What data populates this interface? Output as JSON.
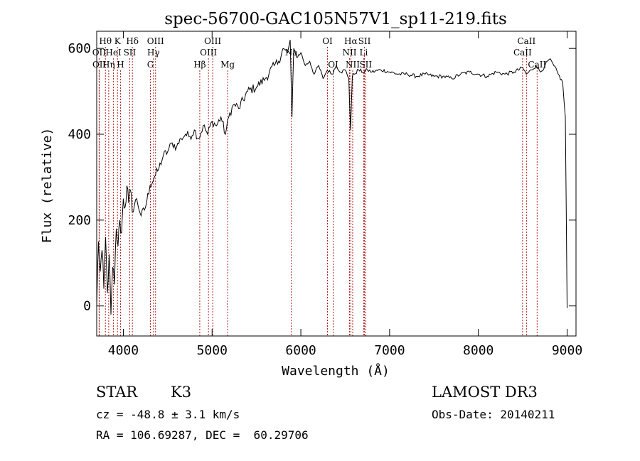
{
  "chart_data": {
    "type": "line",
    "title": "spec-56700-GAC105N57V1_sp11-219.fits",
    "xlabel": "Wavelength (Å)",
    "ylabel": "Flux (relative)",
    "xlim": [
      3700,
      9100
    ],
    "ylim": [
      -70,
      640
    ],
    "xticks": [
      4000,
      5000,
      6000,
      7000,
      8000,
      9000
    ],
    "yticks": [
      0,
      200,
      400,
      600
    ],
    "grid": false,
    "line_color": "#000000",
    "marker_color": "#b22222",
    "series": [
      {
        "name": "flux",
        "x": [
          3700,
          3720,
          3740,
          3760,
          3780,
          3800,
          3820,
          3840,
          3860,
          3880,
          3900,
          3920,
          3940,
          3960,
          3980,
          4000,
          4020,
          4040,
          4060,
          4080,
          4100,
          4150,
          4200,
          4250,
          4300,
          4350,
          4400,
          4450,
          4500,
          4550,
          4600,
          4650,
          4700,
          4750,
          4800,
          4850,
          4900,
          4950,
          5000,
          5050,
          5100,
          5150,
          5200,
          5250,
          5300,
          5400,
          5500,
          5600,
          5700,
          5750,
          5800,
          5850,
          5880,
          5900,
          5920,
          5950,
          6000,
          6050,
          6100,
          6150,
          6200,
          6250,
          6300,
          6350,
          6400,
          6450,
          6500,
          6540,
          6560,
          6580,
          6600,
          6650,
          6700,
          6750,
          6800,
          6900,
          7000,
          7100,
          7200,
          7300,
          7400,
          7500,
          7600,
          7700,
          7800,
          7900,
          8000,
          8100,
          8200,
          8300,
          8400,
          8500,
          8540,
          8600,
          8650,
          8700,
          8750,
          8800,
          8850,
          8900,
          8950,
          8980,
          9000
        ],
        "y": [
          0,
          150,
          80,
          130,
          40,
          160,
          30,
          120,
          -20,
          90,
          50,
          180,
          140,
          200,
          170,
          250,
          230,
          280,
          240,
          270,
          220,
          250,
          210,
          230,
          280,
          300,
          320,
          350,
          360,
          380,
          370,
          390,
          400,
          395,
          410,
          390,
          420,
          400,
          430,
          420,
          440,
          400,
          450,
          470,
          460,
          500,
          510,
          530,
          560,
          570,
          600,
          590,
          620,
          440,
          600,
          580,
          590,
          560,
          570,
          540,
          560,
          530,
          550,
          540,
          560,
          545,
          550,
          530,
          410,
          535,
          540,
          550,
          545,
          550,
          545,
          550,
          545,
          540,
          540,
          535,
          540,
          535,
          535,
          530,
          540,
          545,
          540,
          535,
          545,
          540,
          545,
          555,
          540,
          550,
          560,
          545,
          560,
          575,
          560,
          540,
          520,
          440,
          -5
        ]
      }
    ],
    "line_markers": [
      {
        "label": "Hθ",
        "x": 3798,
        "row": 1
      },
      {
        "label": "OII",
        "x": 3727,
        "row": 2
      },
      {
        "label": "OII",
        "x": 3729,
        "row": 3
      },
      {
        "label": "K",
        "x": 3934,
        "row": 1
      },
      {
        "label": "HeI",
        "x": 3889,
        "row": 2
      },
      {
        "label": "Hη",
        "x": 3835,
        "row": 3
      },
      {
        "label": "Hδ",
        "x": 4102,
        "row": 1
      },
      {
        "label": "SII",
        "x": 4072,
        "row": 2
      },
      {
        "label": "H",
        "x": 3968,
        "row": 3
      },
      {
        "label": "OIII",
        "x": 4363,
        "row": 1
      },
      {
        "label": "Hγ",
        "x": 4340,
        "row": 2
      },
      {
        "label": "G",
        "x": 4305,
        "row": 3
      },
      {
        "label": "OIII",
        "x": 5007,
        "row": 1
      },
      {
        "label": "OIII",
        "x": 4959,
        "row": 2
      },
      {
        "label": "Hβ",
        "x": 4861,
        "row": 3
      },
      {
        "label": "Mg",
        "x": 5175,
        "row": 3
      },
      {
        "label": "Na",
        "x": 5893,
        "row": 2
      },
      {
        "label": "OI",
        "x": 6300,
        "row": 1
      },
      {
        "label": "OI",
        "x": 6364,
        "row": 3
      },
      {
        "label": "Hα",
        "x": 6563,
        "row": 1
      },
      {
        "label": "NII",
        "x": 6548,
        "row": 2
      },
      {
        "label": "NII",
        "x": 6584,
        "row": 3
      },
      {
        "label": "SII",
        "x": 6717,
        "row": 1
      },
      {
        "label": "Li",
        "x": 6708,
        "row": 2
      },
      {
        "label": "SII",
        "x": 6731,
        "row": 3
      },
      {
        "label": "CaII",
        "x": 8542,
        "row": 1
      },
      {
        "label": "CaII",
        "x": 8498,
        "row": 2
      },
      {
        "label": "CaII",
        "x": 8662,
        "row": 3
      }
    ]
  },
  "info": {
    "object_class": "STAR",
    "subclass": "K3",
    "survey": "LAMOST DR3",
    "cz": "cz = -48.8 ± 3.1 km/s",
    "obs_date": "Obs-Date: 20140211",
    "coords": "RA = 106.69287, DEC =  60.29706"
  }
}
